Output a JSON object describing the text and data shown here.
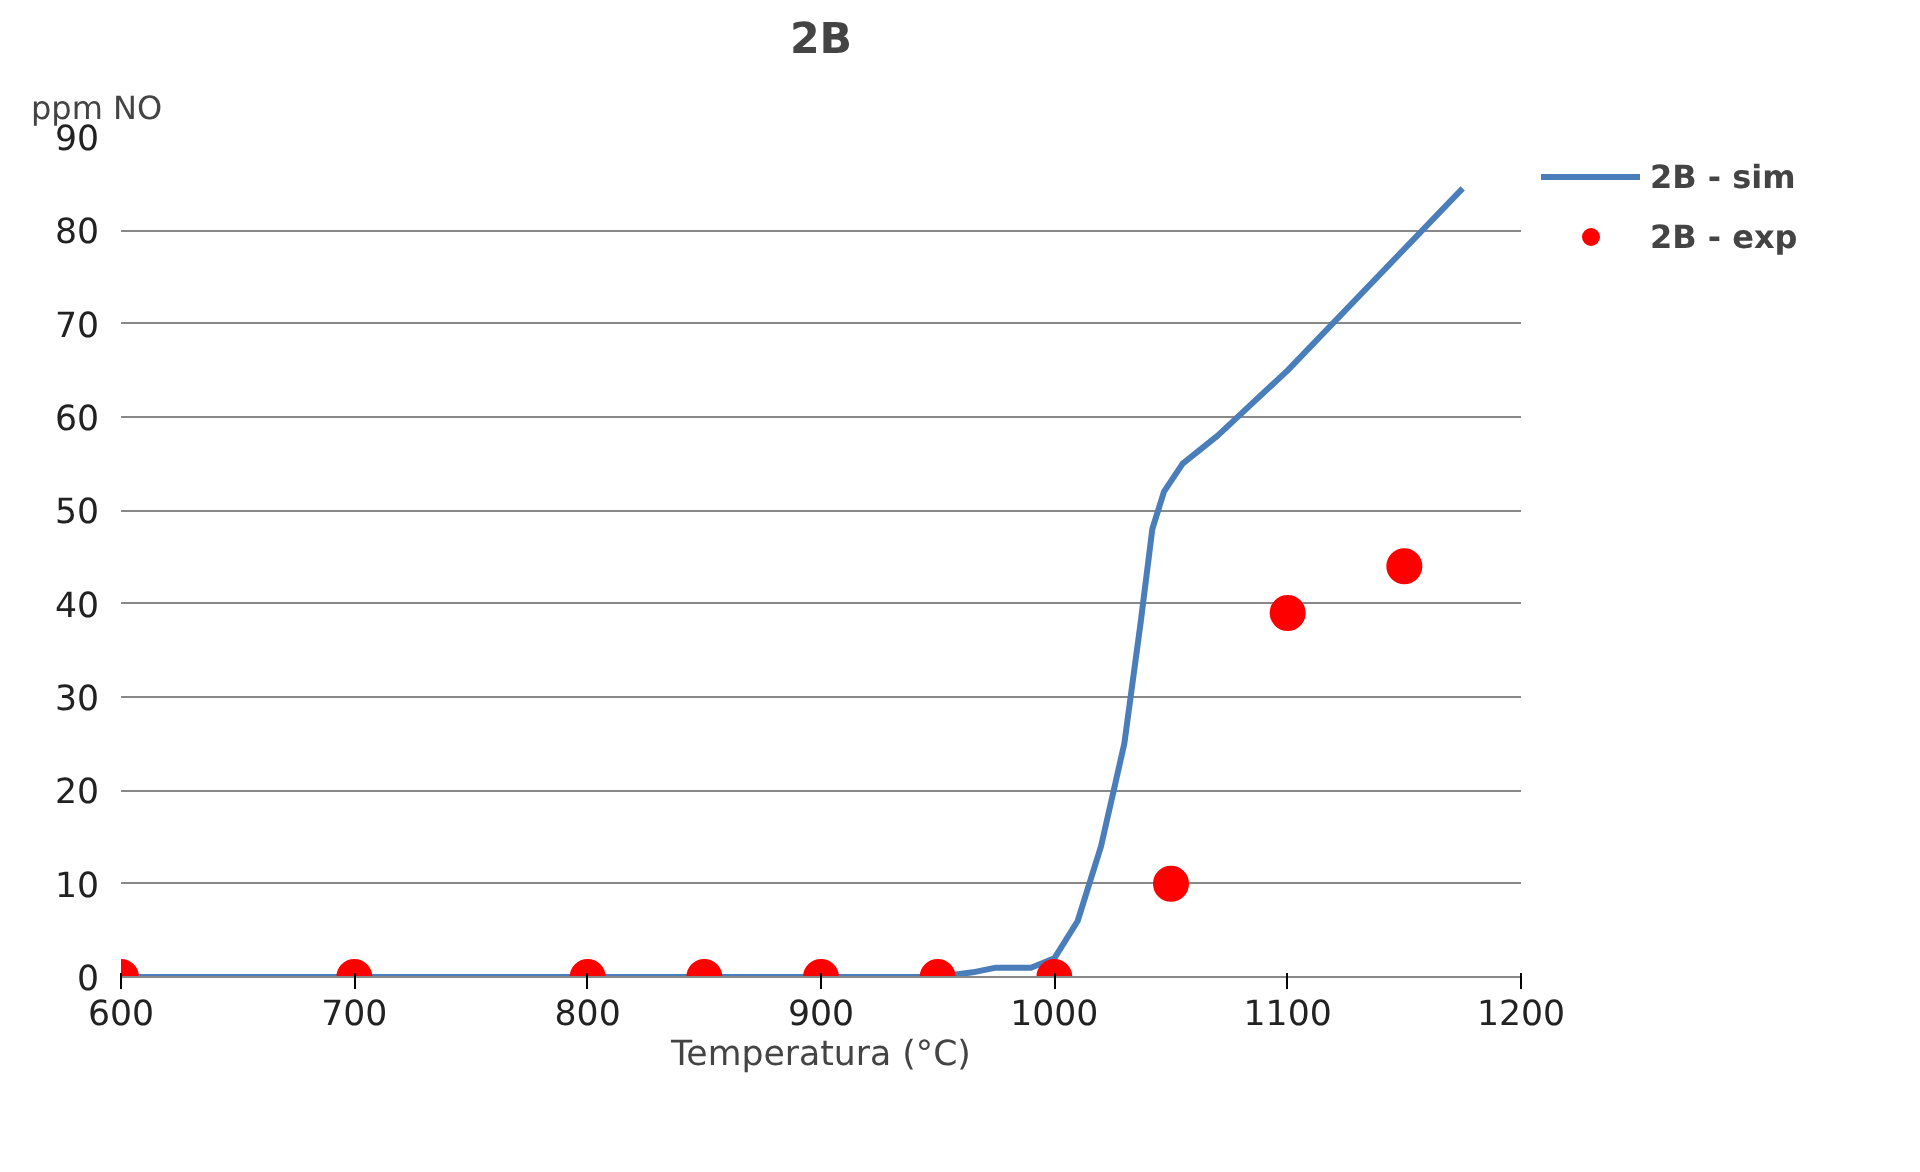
{
  "chart_data": {
    "type": "line",
    "title": "2B",
    "xlabel": "Temperatura (°C)",
    "ylabel": "ppm NO",
    "xlim": [
      600,
      1200
    ],
    "xticks": [
      600,
      700,
      800,
      900,
      1000,
      1100,
      1200
    ],
    "ylim": [
      0,
      90
    ],
    "yticks": [
      0,
      10,
      20,
      30,
      40,
      50,
      60,
      70,
      80,
      90
    ],
    "grid": "y",
    "legend": "top right",
    "series": [
      {
        "name": "2B - sim",
        "color": "#4a7ebb",
        "line_style": "solid",
        "x": [
          600,
          950,
          965,
          975,
          990,
          1000,
          1010,
          1020,
          1030,
          1037,
          1042,
          1047,
          1055,
          1070,
          1100,
          1175
        ],
        "values": [
          0,
          0,
          0.5,
          1,
          1,
          2,
          6,
          14,
          25,
          38,
          48,
          52,
          55,
          58,
          65,
          84.5
        ]
      },
      {
        "name": "2B - exp",
        "type": "scatter",
        "color": "#ff0000",
        "marker": "circle",
        "x": [
          600,
          700,
          800,
          850,
          900,
          950,
          1000,
          1050,
          1100,
          1150
        ],
        "values": [
          0,
          0,
          0,
          0,
          0,
          0,
          0,
          10,
          39,
          44
        ]
      }
    ]
  }
}
